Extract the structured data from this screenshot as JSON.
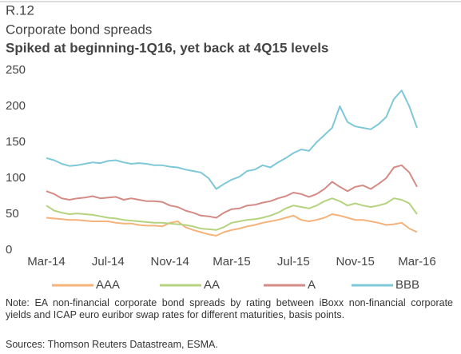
{
  "chart_data": {
    "type": "line",
    "label": "R.12",
    "title": "Corporate bond spreads",
    "subtitle": "Spiked at beginning-1Q16, yet back at 4Q15 levels",
    "categories": [
      "Mar-14",
      null,
      null,
      null,
      null,
      null,
      null,
      null,
      "Jul-14",
      null,
      null,
      null,
      null,
      null,
      null,
      null,
      "Nov-14",
      null,
      null,
      null,
      null,
      null,
      null,
      null,
      "Mar-15",
      null,
      null,
      null,
      null,
      null,
      null,
      null,
      "Jul-15",
      null,
      null,
      null,
      null,
      null,
      null,
      null,
      "Nov-15",
      null,
      null,
      null,
      null,
      null,
      null,
      null,
      "Mar-16"
    ],
    "series": [
      {
        "name": "AAA",
        "color": "#f5b27a",
        "values": [
          45,
          44,
          43,
          42,
          42,
          41,
          40,
          40,
          40,
          38,
          37,
          37,
          35,
          34,
          34,
          33,
          38,
          40,
          32,
          28,
          25,
          22,
          20,
          25,
          28,
          30,
          33,
          35,
          38,
          40,
          42,
          45,
          48,
          42,
          40,
          42,
          45,
          50,
          48,
          45,
          42,
          42,
          40,
          38,
          35,
          36,
          38,
          30,
          25
        ]
      },
      {
        "name": "AA",
        "color": "#b5d37f",
        "values": [
          62,
          55,
          52,
          50,
          51,
          50,
          49,
          47,
          45,
          44,
          42,
          41,
          40,
          39,
          38,
          38,
          37,
          36,
          35,
          33,
          30,
          29,
          28,
          32,
          38,
          40,
          42,
          43,
          45,
          48,
          52,
          58,
          62,
          60,
          58,
          62,
          68,
          72,
          68,
          62,
          65,
          62,
          60,
          62,
          65,
          72,
          70,
          65,
          50
        ]
      },
      {
        "name": "A",
        "color": "#d48a85",
        "values": [
          82,
          78,
          72,
          70,
          72,
          73,
          75,
          72,
          73,
          74,
          70,
          72,
          70,
          68,
          68,
          67,
          62,
          60,
          55,
          52,
          48,
          47,
          45,
          52,
          57,
          58,
          62,
          63,
          66,
          68,
          72,
          75,
          80,
          78,
          74,
          78,
          85,
          95,
          88,
          82,
          88,
          90,
          85,
          92,
          100,
          115,
          118,
          108,
          88
        ]
      },
      {
        "name": "BBB",
        "color": "#7ec8d8",
        "values": [
          128,
          125,
          120,
          117,
          118,
          120,
          122,
          121,
          124,
          125,
          122,
          120,
          121,
          120,
          118,
          118,
          116,
          115,
          112,
          110,
          108,
          100,
          85,
          92,
          98,
          102,
          110,
          112,
          118,
          115,
          122,
          128,
          135,
          140,
          138,
          150,
          160,
          170,
          200,
          178,
          172,
          170,
          168,
          175,
          185,
          210,
          222,
          200,
          170
        ]
      }
    ],
    "ylim": [
      0,
      250
    ],
    "yticks": [
      0,
      50,
      100,
      150,
      200,
      250
    ],
    "grid": false,
    "legend": "bottom",
    "note": "Note: EA non-financial corporate bond spreads by rating between iBoxx non-financial corporate yields and ICAP euro euribor swap rates for different maturities, basis points.",
    "source": "Sources: Thomson Reuters Datastream, ESMA."
  }
}
